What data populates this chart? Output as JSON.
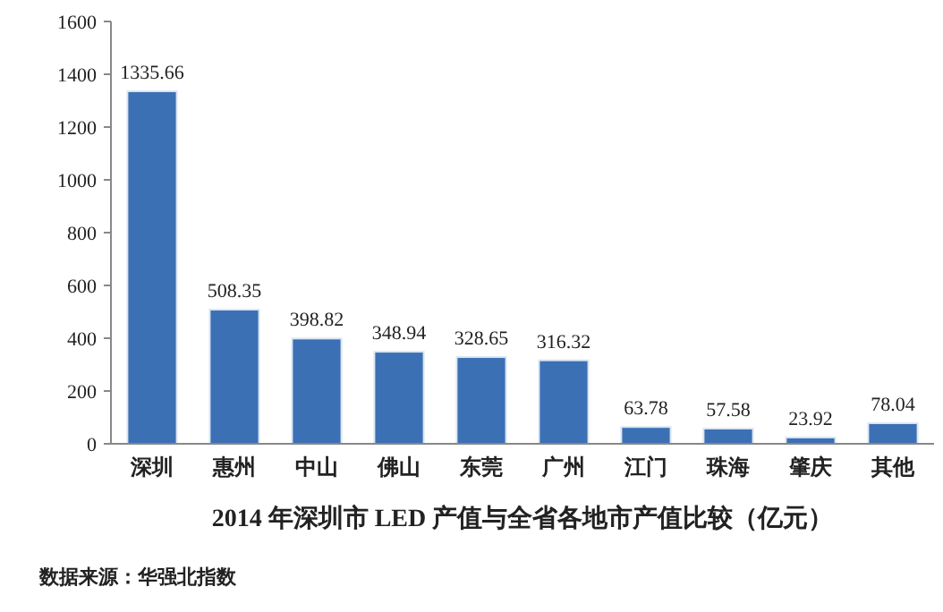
{
  "chart_data": {
    "type": "bar",
    "title": "2014 年深圳市 LED 产值与全省各地市产值比较（亿元）",
    "categories": [
      "深圳",
      "惠州",
      "中山",
      "佛山",
      "东莞",
      "广州",
      "江门",
      "珠海",
      "肇庆",
      "其他"
    ],
    "values": [
      1335.66,
      508.35,
      398.82,
      348.94,
      328.65,
      316.32,
      63.78,
      57.58,
      23.92,
      78.04
    ],
    "color": "#3b70b5",
    "data_labels": true,
    "ylim": [
      0,
      1600
    ],
    "yticks": [
      0,
      200,
      400,
      600,
      800,
      1000,
      1200,
      1400,
      1600
    ],
    "grid": false,
    "annotations": [
      "数据来源：华强北指数"
    ]
  }
}
